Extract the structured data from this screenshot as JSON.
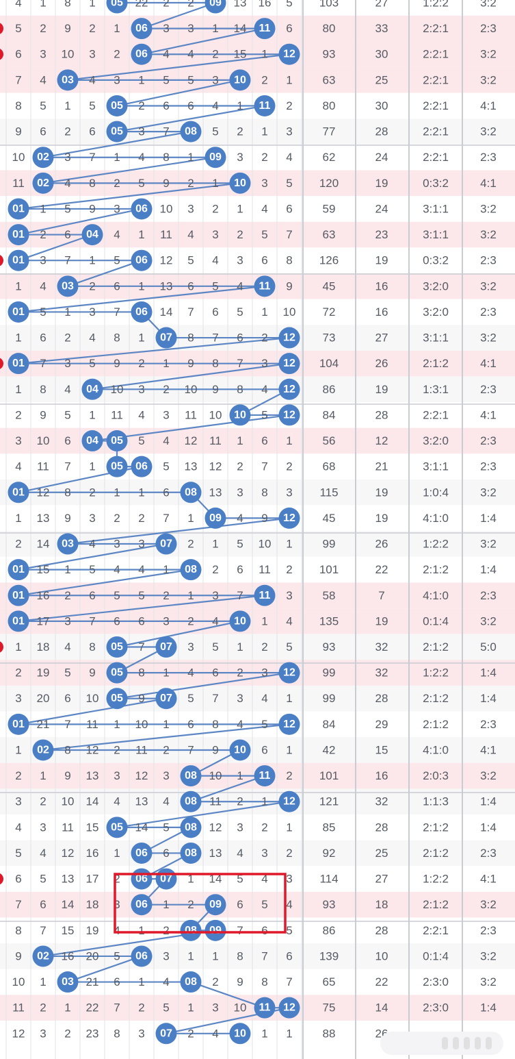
{
  "colors": {
    "ball": "#4a7fc6",
    "line": "#5c86c4",
    "highlight_box": "#e0192a",
    "pink_row": "#fce8ea"
  },
  "rows": [
    {
      "cells": [
        "4",
        "1",
        "8",
        "1",
        "05",
        "22",
        "2",
        "2",
        "09",
        "13",
        "16",
        "5"
      ],
      "sum": "103",
      "span": "27",
      "ratio1": "1:2:2",
      "ratio2": "3:2",
      "balls": [
        4,
        8
      ],
      "edge": false
    },
    {
      "cells": [
        "5",
        "2",
        "9",
        "2",
        "1",
        "06",
        "3",
        "3",
        "1",
        "14",
        "11",
        "6"
      ],
      "sum": "80",
      "span": "33",
      "ratio1": "2:2:1",
      "ratio2": "2:3",
      "balls": [
        5,
        10
      ],
      "edge": true
    },
    {
      "cells": [
        "6",
        "3",
        "10",
        "3",
        "2",
        "06",
        "4",
        "4",
        "2",
        "15",
        "1",
        "12"
      ],
      "sum": "93",
      "span": "30",
      "ratio1": "2:2:1",
      "ratio2": "3:2",
      "balls": [
        5,
        11
      ],
      "edge": true
    },
    {
      "cells": [
        "7",
        "4",
        "03",
        "4",
        "3",
        "1",
        "5",
        "5",
        "3",
        "10",
        "2",
        "1"
      ],
      "sum": "63",
      "span": "25",
      "ratio1": "2:2:1",
      "ratio2": "3:2",
      "balls": [
        2,
        9
      ],
      "edge": false
    },
    {
      "cells": [
        "8",
        "5",
        "1",
        "5",
        "05",
        "2",
        "6",
        "6",
        "4",
        "1",
        "11",
        "2"
      ],
      "sum": "80",
      "span": "30",
      "ratio1": "2:2:1",
      "ratio2": "4:1",
      "balls": [
        4,
        10
      ],
      "edge": false
    },
    {
      "cells": [
        "9",
        "6",
        "2",
        "6",
        "05",
        "3",
        "7",
        "08",
        "5",
        "2",
        "1",
        "3"
      ],
      "sum": "77",
      "span": "28",
      "ratio1": "2:2:1",
      "ratio2": "3:2",
      "balls": [
        4,
        7
      ],
      "edge": false
    },
    {
      "cells": [
        "10",
        "02",
        "3",
        "7",
        "1",
        "4",
        "8",
        "1",
        "09",
        "3",
        "2",
        "4"
      ],
      "sum": "62",
      "span": "24",
      "ratio1": "2:2:1",
      "ratio2": "2:3",
      "balls": [
        1,
        8
      ],
      "edge": false
    },
    {
      "cells": [
        "11",
        "02",
        "4",
        "8",
        "2",
        "5",
        "9",
        "2",
        "1",
        "10",
        "3",
        "5"
      ],
      "sum": "120",
      "span": "19",
      "ratio1": "0:3:2",
      "ratio2": "4:1",
      "balls": [
        1,
        9
      ],
      "edge": false
    },
    {
      "cells": [
        "01",
        "1",
        "5",
        "9",
        "3",
        "06",
        "10",
        "3",
        "2",
        "1",
        "4",
        "6"
      ],
      "sum": "59",
      "span": "24",
      "ratio1": "3:1:1",
      "ratio2": "3:2",
      "balls": [
        0,
        5
      ],
      "edge": false
    },
    {
      "cells": [
        "01",
        "2",
        "6",
        "04",
        "4",
        "1",
        "11",
        "4",
        "3",
        "2",
        "5",
        "7"
      ],
      "sum": "63",
      "span": "23",
      "ratio1": "3:1:1",
      "ratio2": "3:2",
      "balls": [
        0,
        3
      ],
      "edge": false
    },
    {
      "cells": [
        "01",
        "3",
        "7",
        "1",
        "5",
        "06",
        "12",
        "5",
        "4",
        "3",
        "6",
        "8"
      ],
      "sum": "126",
      "span": "19",
      "ratio1": "0:3:2",
      "ratio2": "2:3",
      "balls": [
        0,
        5
      ],
      "edge": true
    },
    {
      "cells": [
        "1",
        "4",
        "03",
        "2",
        "6",
        "1",
        "13",
        "6",
        "5",
        "4",
        "11",
        "9"
      ],
      "sum": "45",
      "span": "16",
      "ratio1": "3:2:0",
      "ratio2": "3:2",
      "balls": [
        2,
        10
      ],
      "edge": false
    },
    {
      "cells": [
        "01",
        "5",
        "1",
        "3",
        "7",
        "06",
        "14",
        "7",
        "6",
        "5",
        "1",
        "10"
      ],
      "sum": "72",
      "span": "16",
      "ratio1": "3:2:0",
      "ratio2": "2:3",
      "balls": [
        0,
        5
      ],
      "edge": false
    },
    {
      "cells": [
        "1",
        "6",
        "2",
        "4",
        "8",
        "1",
        "07",
        "8",
        "7",
        "6",
        "2",
        "12"
      ],
      "sum": "73",
      "span": "27",
      "ratio1": "3:1:1",
      "ratio2": "3:2",
      "balls": [
        6,
        11
      ],
      "edge": false
    },
    {
      "cells": [
        "01",
        "7",
        "3",
        "5",
        "9",
        "2",
        "1",
        "9",
        "8",
        "7",
        "3",
        "12"
      ],
      "sum": "104",
      "span": "26",
      "ratio1": "2:1:2",
      "ratio2": "4:1",
      "balls": [
        0,
        11
      ],
      "edge": true
    },
    {
      "cells": [
        "1",
        "8",
        "4",
        "04",
        "10",
        "3",
        "2",
        "10",
        "9",
        "8",
        "4",
        "12"
      ],
      "sum": "86",
      "span": "19",
      "ratio1": "1:3:1",
      "ratio2": "2:3",
      "balls": [
        3,
        11
      ],
      "edge": false
    },
    {
      "cells": [
        "2",
        "9",
        "5",
        "1",
        "11",
        "4",
        "3",
        "11",
        "10",
        "10",
        "5",
        "12"
      ],
      "sum": "84",
      "span": "28",
      "ratio1": "2:2:1",
      "ratio2": "4:1",
      "balls": [
        9,
        11
      ],
      "edge": false
    },
    {
      "cells": [
        "3",
        "10",
        "6",
        "04",
        "05",
        "5",
        "4",
        "12",
        "11",
        "1",
        "6",
        "1"
      ],
      "sum": "56",
      "span": "12",
      "ratio1": "3:2:0",
      "ratio2": "2:3",
      "balls": [
        3,
        4
      ],
      "edge": false
    },
    {
      "cells": [
        "4",
        "11",
        "7",
        "1",
        "05",
        "06",
        "5",
        "13",
        "12",
        "2",
        "7",
        "2"
      ],
      "sum": "68",
      "span": "21",
      "ratio1": "3:1:1",
      "ratio2": "2:3",
      "balls": [
        4,
        5
      ],
      "edge": false
    },
    {
      "cells": [
        "01",
        "12",
        "8",
        "2",
        "1",
        "1",
        "6",
        "08",
        "13",
        "3",
        "8",
        "3"
      ],
      "sum": "115",
      "span": "19",
      "ratio1": "1:0:4",
      "ratio2": "3:2",
      "balls": [
        0,
        7
      ],
      "edge": false
    },
    {
      "cells": [
        "1",
        "13",
        "9",
        "3",
        "2",
        "2",
        "7",
        "1",
        "09",
        "4",
        "9",
        "12"
      ],
      "sum": "45",
      "span": "19",
      "ratio1": "4:1:0",
      "ratio2": "1:4",
      "balls": [
        8,
        11
      ],
      "edge": false
    },
    {
      "cells": [
        "2",
        "14",
        "03",
        "4",
        "3",
        "3",
        "07",
        "2",
        "1",
        "5",
        "10",
        "1"
      ],
      "sum": "99",
      "span": "26",
      "ratio1": "1:2:2",
      "ratio2": "3:2",
      "balls": [
        2,
        6
      ],
      "edge": false
    },
    {
      "cells": [
        "01",
        "15",
        "1",
        "5",
        "4",
        "4",
        "1",
        "08",
        "2",
        "6",
        "11",
        "2"
      ],
      "sum": "101",
      "span": "22",
      "ratio1": "2:1:2",
      "ratio2": "1:4",
      "balls": [
        0,
        7
      ],
      "edge": false
    },
    {
      "cells": [
        "01",
        "16",
        "2",
        "6",
        "5",
        "5",
        "2",
        "1",
        "3",
        "7",
        "11",
        "3"
      ],
      "sum": "58",
      "span": "7",
      "ratio1": "4:1:0",
      "ratio2": "2:3",
      "balls": [
        0,
        10
      ],
      "edge": false
    },
    {
      "cells": [
        "01",
        "17",
        "3",
        "7",
        "6",
        "6",
        "3",
        "2",
        "4",
        "10",
        "1",
        "4"
      ],
      "sum": "135",
      "span": "19",
      "ratio1": "0:1:4",
      "ratio2": "3:2",
      "balls": [
        0,
        9
      ],
      "edge": false
    },
    {
      "cells": [
        "1",
        "18",
        "4",
        "8",
        "05",
        "7",
        "07",
        "3",
        "5",
        "1",
        "2",
        "5"
      ],
      "sum": "93",
      "span": "32",
      "ratio1": "2:1:2",
      "ratio2": "5:0",
      "balls": [
        4,
        6
      ],
      "edge": true
    },
    {
      "cells": [
        "2",
        "19",
        "5",
        "9",
        "05",
        "8",
        "1",
        "4",
        "6",
        "2",
        "3",
        "12"
      ],
      "sum": "99",
      "span": "32",
      "ratio1": "1:2:2",
      "ratio2": "1:4",
      "balls": [
        4,
        11
      ],
      "edge": false
    },
    {
      "cells": [
        "3",
        "20",
        "6",
        "10",
        "05",
        "9",
        "07",
        "5",
        "7",
        "3",
        "4",
        "1"
      ],
      "sum": "99",
      "span": "28",
      "ratio1": "2:1:2",
      "ratio2": "1:4",
      "balls": [
        4,
        6
      ],
      "edge": false
    },
    {
      "cells": [
        "01",
        "21",
        "7",
        "11",
        "1",
        "10",
        "1",
        "6",
        "8",
        "4",
        "5",
        "12"
      ],
      "sum": "84",
      "span": "29",
      "ratio1": "2:1:2",
      "ratio2": "2:3",
      "balls": [
        0,
        11
      ],
      "edge": false
    },
    {
      "cells": [
        "1",
        "02",
        "8",
        "12",
        "2",
        "11",
        "2",
        "7",
        "9",
        "10",
        "6",
        "1"
      ],
      "sum": "42",
      "span": "15",
      "ratio1": "4:1:0",
      "ratio2": "4:1",
      "balls": [
        1,
        9
      ],
      "edge": false
    },
    {
      "cells": [
        "2",
        "1",
        "9",
        "13",
        "3",
        "12",
        "3",
        "08",
        "10",
        "1",
        "11",
        "2"
      ],
      "sum": "101",
      "span": "16",
      "ratio1": "2:0:3",
      "ratio2": "3:2",
      "balls": [
        7,
        10
      ],
      "edge": false
    },
    {
      "cells": [
        "3",
        "2",
        "10",
        "14",
        "4",
        "13",
        "4",
        "08",
        "11",
        "2",
        "1",
        "12"
      ],
      "sum": "121",
      "span": "32",
      "ratio1": "1:1:3",
      "ratio2": "1:4",
      "balls": [
        7,
        11
      ],
      "edge": false
    },
    {
      "cells": [
        "4",
        "3",
        "11",
        "15",
        "05",
        "14",
        "5",
        "08",
        "12",
        "3",
        "2",
        "1"
      ],
      "sum": "85",
      "span": "28",
      "ratio1": "2:1:2",
      "ratio2": "1:4",
      "balls": [
        4,
        7
      ],
      "edge": false
    },
    {
      "cells": [
        "5",
        "4",
        "12",
        "16",
        "1",
        "06",
        "6",
        "08",
        "13",
        "4",
        "3",
        "2"
      ],
      "sum": "92",
      "span": "25",
      "ratio1": "2:1:2",
      "ratio2": "2:3",
      "balls": [
        5,
        7
      ],
      "edge": false
    },
    {
      "cells": [
        "6",
        "5",
        "13",
        "17",
        "2",
        "06",
        "07",
        "1",
        "14",
        "5",
        "4",
        "3"
      ],
      "sum": "114",
      "span": "27",
      "ratio1": "1:2:2",
      "ratio2": "4:1",
      "balls": [
        5,
        6
      ],
      "edge": true
    },
    {
      "cells": [
        "7",
        "6",
        "14",
        "18",
        "3",
        "06",
        "1",
        "2",
        "09",
        "6",
        "5",
        "4"
      ],
      "sum": "93",
      "span": "18",
      "ratio1": "2:1:2",
      "ratio2": "3:2",
      "balls": [
        5,
        8
      ],
      "edge": false
    },
    {
      "cells": [
        "8",
        "7",
        "15",
        "19",
        "4",
        "1",
        "2",
        "08",
        "09",
        "7",
        "6",
        "5"
      ],
      "sum": "86",
      "span": "28",
      "ratio1": "2:2:1",
      "ratio2": "2:3",
      "balls": [
        7,
        8
      ],
      "edge": false
    },
    {
      "cells": [
        "9",
        "02",
        "16",
        "20",
        "5",
        "06",
        "3",
        "1",
        "1",
        "8",
        "7",
        "6"
      ],
      "sum": "139",
      "span": "10",
      "ratio1": "0:1:4",
      "ratio2": "3:2",
      "balls": [
        1,
        5
      ],
      "edge": false
    },
    {
      "cells": [
        "10",
        "1",
        "03",
        "21",
        "6",
        "1",
        "4",
        "08",
        "2",
        "9",
        "8",
        "7"
      ],
      "sum": "65",
      "span": "22",
      "ratio1": "2:3:0",
      "ratio2": "3:2",
      "balls": [
        2,
        7
      ],
      "edge": false
    },
    {
      "cells": [
        "11",
        "2",
        "1",
        "22",
        "7",
        "2",
        "5",
        "1",
        "3",
        "10",
        "11",
        "12"
      ],
      "sum": "75",
      "span": "14",
      "ratio1": "2:3:0",
      "ratio2": "1:4",
      "balls": [
        10,
        11
      ],
      "edge": false
    },
    {
      "cells": [
        "12",
        "3",
        "2",
        "23",
        "8",
        "3",
        "07",
        "2",
        "4",
        "10",
        "1",
        "1"
      ],
      "sum": "88",
      "span": "26",
      "ratio1": "",
      "ratio2": "",
      "balls": [
        6,
        9
      ],
      "edge": false
    }
  ]
}
